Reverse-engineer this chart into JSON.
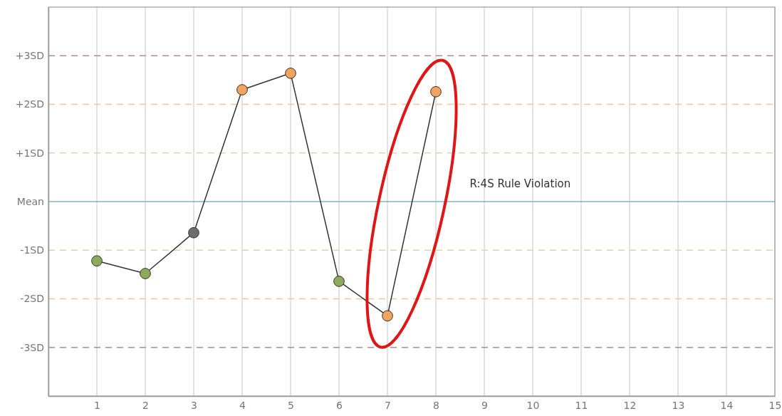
{
  "chart_data": {
    "type": "line",
    "x": [
      1,
      2,
      3,
      4,
      5,
      6,
      7,
      8
    ],
    "series": [
      {
        "color": "#333333",
        "colors": [
          "#8bab5a",
          "#8bab5a",
          "#6d6d6d",
          "#f2a35e",
          "#f2a35e",
          "#8bab5a",
          "#f2a35e",
          "#f2a35e"
        ],
        "values": [
          -1.22,
          -1.48,
          -0.64,
          2.3,
          2.64,
          -1.64,
          -2.35,
          2.26
        ]
      }
    ],
    "xlim": [
      0,
      15
    ],
    "xticks": [
      1,
      2,
      3,
      4,
      5,
      6,
      7,
      8,
      9,
      10,
      11,
      12,
      13,
      14,
      15
    ],
    "ylim": [
      -4,
      4
    ],
    "yticks": [
      {
        "value": -3,
        "label": "-3SD"
      },
      {
        "value": -2,
        "label": "-2SD"
      },
      {
        "value": -1,
        "label": "-1SD"
      },
      {
        "value": 0,
        "label": "Mean"
      },
      {
        "value": 1,
        "label": "+1SD"
      },
      {
        "value": 2,
        "label": "+2SD"
      },
      {
        "value": 3,
        "label": "+3SD"
      }
    ],
    "grid": "x",
    "marker": "circle",
    "line_style": "solid",
    "ref_lines": [
      {
        "axis": "y",
        "value": 3,
        "color": "#b58b86",
        "line_style": "dashed"
      },
      {
        "axis": "y",
        "value": 2,
        "color": "#f0c898",
        "line_style": "dashed"
      },
      {
        "axis": "y",
        "value": 1,
        "color": "#e2d3b0",
        "line_style": "dashed"
      },
      {
        "axis": "y",
        "value": 0,
        "color": "#7fb3c8",
        "line_style": "solid"
      },
      {
        "axis": "y",
        "value": -1,
        "color": "#e2d3b0",
        "line_style": "dashed"
      },
      {
        "axis": "y",
        "value": -2,
        "color": "#f0c898",
        "line_style": "dashed"
      },
      {
        "axis": "y",
        "value": -3,
        "color": "#b58b86",
        "line_style": "dashed"
      }
    ],
    "annotations": [
      "R:4S Rule Violation"
    ]
  }
}
